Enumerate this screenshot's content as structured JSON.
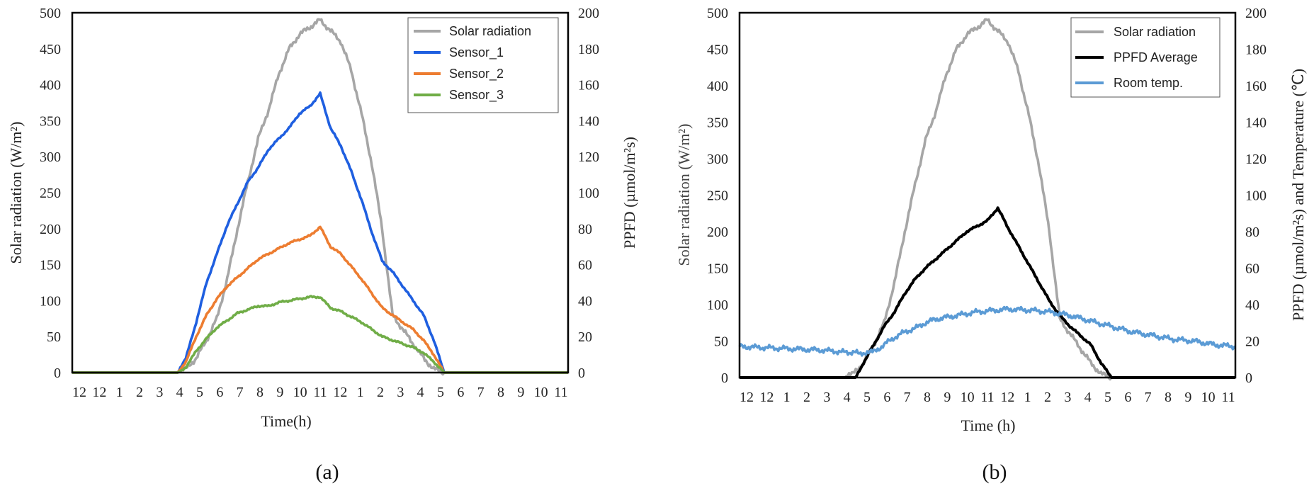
{
  "chart_data": [
    {
      "type": "line",
      "caption": "(a)",
      "xlabel": "Time(h)",
      "ylabel_left": "Solar radiation  (W/m²)",
      "ylabel_right": "PPFD  (µmol/m²s)",
      "ylim_left": [
        0,
        500
      ],
      "ylim_right": [
        0,
        200
      ],
      "yticks_left": [
        "0",
        "50",
        "100",
        "150",
        "200",
        "250",
        "300",
        "350",
        "400",
        "450",
        "500"
      ],
      "yticks_right": [
        "0",
        "20",
        "40",
        "60",
        "80",
        "100",
        "120",
        "140",
        "160",
        "180",
        "200"
      ],
      "x_tick_labels": [
        "12",
        "12",
        "1",
        "2",
        "3",
        "4",
        "5",
        "6",
        "7",
        "8",
        "9",
        "10",
        "11",
        "12",
        "1",
        "2",
        "3",
        "4",
        "5",
        "6",
        "7",
        "8",
        "9",
        "10",
        "11"
      ],
      "series": [
        {
          "name": "Solar radiation",
          "color": "#a6a6a6",
          "axis": "left",
          "x": [
            0,
            5.1,
            5.5,
            6,
            6.5,
            7,
            7.5,
            8,
            8.5,
            9,
            9.5,
            10,
            10.5,
            11,
            11.5,
            12,
            12.5,
            13,
            13.5,
            14,
            14.5,
            15,
            15.5,
            16,
            16.5,
            17,
            17.5,
            18,
            18.5,
            24
          ],
          "y": [
            0,
            0,
            5,
            20,
            45,
            75,
            130,
            200,
            265,
            325,
            365,
            415,
            450,
            470,
            480,
            490,
            475,
            460,
            420,
            360,
            290,
            200,
            80,
            60,
            40,
            20,
            5,
            0,
            0,
            0
          ]
        },
        {
          "name": "Sensor_1",
          "color": "#1f5fe0",
          "axis": "right",
          "x": [
            0,
            5.1,
            5.5,
            6,
            6.5,
            7,
            7.5,
            8,
            8.5,
            9,
            9.5,
            10,
            10.5,
            11,
            11.5,
            12,
            12.5,
            13,
            13.5,
            14,
            14.5,
            15,
            15.5,
            16,
            16.5,
            17,
            17.5,
            18,
            18.5,
            24
          ],
          "y": [
            0,
            0,
            8,
            28,
            50,
            66,
            82,
            94,
            106,
            114,
            124,
            130,
            136,
            144,
            148,
            155,
            136,
            126,
            112,
            96,
            78,
            62,
            56,
            48,
            40,
            32,
            18,
            0,
            0,
            0
          ]
        },
        {
          "name": "Sensor_2",
          "color": "#ed7d31",
          "axis": "right",
          "x": [
            0,
            5.1,
            5.5,
            6,
            6.5,
            7,
            7.5,
            8,
            8.5,
            9,
            9.5,
            10,
            10.5,
            11,
            11.5,
            12,
            12.5,
            13,
            13.5,
            14,
            14.5,
            15,
            15.5,
            16,
            16.5,
            17,
            17.5,
            18,
            18.5,
            24
          ],
          "y": [
            0,
            0,
            6,
            20,
            32,
            41,
            48,
            53,
            58,
            63,
            66,
            69,
            72,
            74,
            76,
            81,
            70,
            66,
            59,
            52,
            44,
            36,
            32,
            28,
            24,
            18,
            10,
            0,
            0,
            0
          ]
        },
        {
          "name": "Sensor_3",
          "color": "#70ad47",
          "axis": "right",
          "x": [
            0,
            5.1,
            5.5,
            6,
            6.5,
            7,
            7.5,
            8,
            8.5,
            9,
            9.5,
            10,
            10.5,
            11,
            11.5,
            12,
            12.5,
            13,
            13.5,
            14,
            14.5,
            15,
            15.5,
            16,
            16.5,
            17,
            17.5,
            18,
            18.5,
            24
          ],
          "y": [
            0,
            0,
            3,
            12,
            19,
            25,
            29,
            33,
            35,
            37,
            37,
            39,
            40,
            41,
            42,
            42,
            36,
            34,
            31,
            28,
            24,
            20,
            18,
            16,
            14,
            11,
            6,
            0,
            0,
            0
          ]
        }
      ]
    },
    {
      "type": "line",
      "caption": "(b)",
      "xlabel": "Time (h)",
      "ylabel_left": "Solar radiation  (W/m²)",
      "ylabel_right": "PPFD (µmol/m²s) and Temperature (℃)",
      "ylim_left": [
        0,
        500
      ],
      "ylim_right": [
        0,
        200
      ],
      "yticks_left": [
        "0",
        "50",
        "100",
        "150",
        "200",
        "250",
        "300",
        "350",
        "400",
        "450",
        "500"
      ],
      "yticks_right": [
        "0",
        "20",
        "40",
        "60",
        "80",
        "100",
        "120",
        "140",
        "160",
        "180",
        "200"
      ],
      "x_tick_labels": [
        "12",
        "12",
        "1",
        "2",
        "3",
        "4",
        "5",
        "6",
        "7",
        "8",
        "9",
        "10",
        "11",
        "12",
        "1",
        "2",
        "3",
        "4",
        "5",
        "6",
        "7",
        "8",
        "9",
        "10",
        "11"
      ],
      "series": [
        {
          "name": "Solar radiation",
          "color": "#a6a6a6",
          "axis": "left",
          "x": [
            0,
            5.1,
            5.5,
            6,
            6.5,
            7,
            7.5,
            8,
            8.5,
            9,
            9.5,
            10,
            10.5,
            11,
            11.5,
            12,
            12.5,
            13,
            13.5,
            14,
            14.5,
            15,
            15.5,
            16,
            16.5,
            17,
            17.5,
            18,
            18.5,
            24
          ],
          "y": [
            0,
            0,
            5,
            20,
            45,
            75,
            130,
            200,
            265,
            325,
            365,
            415,
            450,
            470,
            480,
            490,
            475,
            460,
            420,
            360,
            290,
            200,
            80,
            60,
            40,
            20,
            5,
            0,
            0,
            0
          ]
        },
        {
          "name": "PPFD Average",
          "color": "#000000",
          "axis": "right",
          "x": [
            0,
            5.6,
            6,
            6.5,
            7,
            7.5,
            8,
            8.5,
            9,
            9.5,
            10,
            10.5,
            11,
            11.5,
            12,
            12.5,
            13,
            13.5,
            14,
            14.5,
            15,
            15.5,
            16,
            16.5,
            17,
            17.5,
            18,
            18.5,
            24
          ],
          "y": [
            0,
            0,
            8,
            18,
            28,
            36,
            46,
            54,
            60,
            65,
            70,
            75,
            80,
            83,
            86,
            93,
            82,
            72,
            62,
            52,
            42,
            34,
            28,
            23,
            18,
            8,
            0,
            0,
            0
          ]
        },
        {
          "name": "Room temp.",
          "color": "#5b9bd5",
          "axis": "right",
          "x": [
            0,
            2,
            4,
            5,
            5.8,
            6.5,
            7,
            7.5,
            8,
            8.5,
            9,
            9.5,
            10,
            10.5,
            11,
            11.5,
            12,
            13,
            14,
            15,
            16,
            17,
            18,
            19,
            20,
            21,
            22,
            23,
            24
          ],
          "y": [
            17,
            16,
            15,
            14,
            13.5,
            14,
            18,
            22,
            25,
            27,
            30,
            32,
            33,
            34,
            35,
            36,
            36.5,
            37.5,
            37,
            36,
            34,
            31,
            28,
            25,
            23,
            21,
            20,
            18,
            17
          ]
        }
      ]
    }
  ]
}
